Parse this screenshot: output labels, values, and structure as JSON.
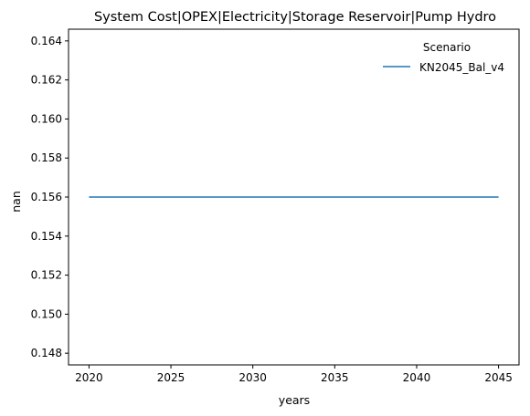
{
  "chart_data": {
    "type": "line",
    "title": "System Cost|OPEX|Electricity|Storage Reservoir|Pump Hydro",
    "xlabel": "years",
    "ylabel": "nan",
    "xlim": [
      2018.75,
      2046.25
    ],
    "ylim": [
      0.1474,
      0.1646
    ],
    "xticks": [
      2020,
      2025,
      2030,
      2035,
      2040,
      2045
    ],
    "xtick_labels": [
      "2020",
      "2025",
      "2030",
      "2035",
      "2040",
      "2045"
    ],
    "yticks": [
      0.148,
      0.15,
      0.152,
      0.154,
      0.156,
      0.158,
      0.16,
      0.162,
      0.164
    ],
    "ytick_labels": [
      "0.148",
      "0.150",
      "0.152",
      "0.154",
      "0.156",
      "0.158",
      "0.160",
      "0.162",
      "0.164"
    ],
    "grid": false,
    "legend": {
      "title": "Scenario",
      "placement": "top-right"
    },
    "series": [
      {
        "name": "KN2045_Bal_v4",
        "color": "#1f77b4",
        "x": [
          2020,
          2025,
          2030,
          2035,
          2040,
          2045
        ],
        "y": [
          0.156,
          0.156,
          0.156,
          0.156,
          0.156,
          0.156
        ]
      }
    ]
  }
}
